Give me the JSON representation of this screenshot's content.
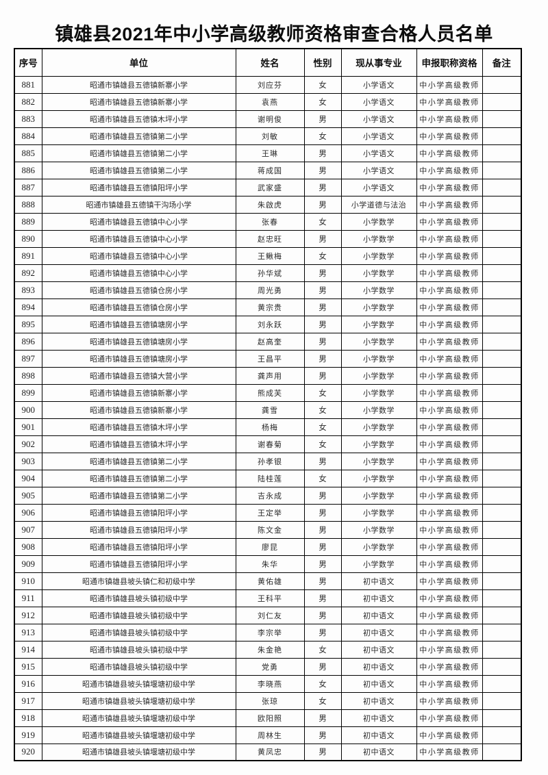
{
  "title": "镇雄县2021年中小学高级教师资格审查合格人员名单",
  "table": {
    "headers": [
      "序号",
      "单位",
      "姓名",
      "性别",
      "现从事专业",
      "申报职称资格",
      "备注"
    ],
    "rows": [
      [
        "881",
        "昭通市镇雄县五德镇新寨小学",
        "刘应芬",
        "女",
        "小学语文",
        "中小学高级教师",
        ""
      ],
      [
        "882",
        "昭通市镇雄县五德镇新寨小学",
        "袁燕",
        "女",
        "小学语文",
        "中小学高级教师",
        ""
      ],
      [
        "883",
        "昭通市镇雄县五德镇木坪小学",
        "谢明俊",
        "男",
        "小学语文",
        "中小学高级教师",
        ""
      ],
      [
        "884",
        "昭通市镇雄县五德镇第二小学",
        "刘敏",
        "女",
        "小学语文",
        "中小学高级教师",
        ""
      ],
      [
        "885",
        "昭通市镇雄县五德镇第二小学",
        "王琳",
        "男",
        "小学语文",
        "中小学高级教师",
        ""
      ],
      [
        "886",
        "昭通市镇雄县五德镇第二小学",
        "蒋成国",
        "男",
        "小学语文",
        "中小学高级教师",
        ""
      ],
      [
        "887",
        "昭通市镇雄县五德镇阳坪小学",
        "武家盛",
        "男",
        "小学语文",
        "中小学高级教师",
        ""
      ],
      [
        "888",
        "昭通市镇雄县五德镇干沟场小学",
        "朱啟虎",
        "男",
        "小学道德与法治",
        "中小学高级教师",
        ""
      ],
      [
        "889",
        "昭通市镇雄县五德镇中心小学",
        "张春",
        "女",
        "小学数学",
        "中小学高级教师",
        ""
      ],
      [
        "890",
        "昭通市镇雄县五德镇中心小学",
        "赵忠旺",
        "男",
        "小学数学",
        "中小学高级教师",
        ""
      ],
      [
        "891",
        "昭通市镇雄县五德镇中心小学",
        "王鳅梅",
        "女",
        "小学数学",
        "中小学高级教师",
        ""
      ],
      [
        "892",
        "昭通市镇雄县五德镇中心小学",
        "孙华斌",
        "男",
        "小学数学",
        "中小学高级教师",
        ""
      ],
      [
        "893",
        "昭通市镇雄县五德镇仓房小学",
        "周光勇",
        "男",
        "小学数学",
        "中小学高级教师",
        ""
      ],
      [
        "894",
        "昭通市镇雄县五德镇仓房小学",
        "黄宗贵",
        "男",
        "小学数学",
        "中小学高级教师",
        ""
      ],
      [
        "895",
        "昭通市镇雄县五德镇塘房小学",
        "刘永跃",
        "男",
        "小学数学",
        "中小学高级教师",
        ""
      ],
      [
        "896",
        "昭通市镇雄县五德镇塘房小学",
        "赵高奎",
        "男",
        "小学数学",
        "中小学高级教师",
        ""
      ],
      [
        "897",
        "昭通市镇雄县五德镇塘房小学",
        "王昌平",
        "男",
        "小学数学",
        "中小学高级教师",
        ""
      ],
      [
        "898",
        "昭通市镇雄县五德镇大营小学",
        "龚声用",
        "男",
        "小学数学",
        "中小学高级教师",
        ""
      ],
      [
        "899",
        "昭通市镇雄县五德镇新寨小学",
        "熊成芙",
        "女",
        "小学数学",
        "中小学高级教师",
        ""
      ],
      [
        "900",
        "昭通市镇雄县五德镇新寨小学",
        "龚雪",
        "女",
        "小学数学",
        "中小学高级教师",
        ""
      ],
      [
        "901",
        "昭通市镇雄县五德镇木坪小学",
        "杨梅",
        "女",
        "小学数学",
        "中小学高级教师",
        ""
      ],
      [
        "902",
        "昭通市镇雄县五德镇木坪小学",
        "谢春菊",
        "女",
        "小学数学",
        "中小学高级教师",
        ""
      ],
      [
        "903",
        "昭通市镇雄县五德镇第二小学",
        "孙孝银",
        "男",
        "小学数学",
        "中小学高级教师",
        ""
      ],
      [
        "904",
        "昭通市镇雄县五德镇第二小学",
        "陆桂莲",
        "女",
        "小学数学",
        "中小学高级教师",
        ""
      ],
      [
        "905",
        "昭通市镇雄县五德镇第二小学",
        "吉永成",
        "男",
        "小学数学",
        "中小学高级教师",
        ""
      ],
      [
        "906",
        "昭通市镇雄县五德镇阳坪小学",
        "王定举",
        "男",
        "小学数学",
        "中小学高级教师",
        ""
      ],
      [
        "907",
        "昭通市镇雄县五德镇阳坪小学",
        "陈文金",
        "男",
        "小学数学",
        "中小学高级教师",
        ""
      ],
      [
        "908",
        "昭通市镇雄县五德镇阳坪小学",
        "廖昆",
        "男",
        "小学数学",
        "中小学高级教师",
        ""
      ],
      [
        "909",
        "昭通市镇雄县五德镇阳坪小学",
        "朱华",
        "男",
        "小学数学",
        "中小学高级教师",
        ""
      ],
      [
        "910",
        "昭通市镇雄县坡头镇仁和初级中学",
        "黄佑雄",
        "男",
        "初中语文",
        "中小学高级教师",
        ""
      ],
      [
        "911",
        "昭通市镇雄县坡头镇初级中学",
        "王科平",
        "男",
        "初中语文",
        "中小学高级教师",
        ""
      ],
      [
        "912",
        "昭通市镇雄县坡头镇初级中学",
        "刘仁友",
        "男",
        "初中语文",
        "中小学高级教师",
        ""
      ],
      [
        "913",
        "昭通市镇雄县坡头镇初级中学",
        "李宗举",
        "男",
        "初中语文",
        "中小学高级教师",
        ""
      ],
      [
        "914",
        "昭通市镇雄县坡头镇初级中学",
        "朱金艳",
        "女",
        "初中语文",
        "中小学高级教师",
        ""
      ],
      [
        "915",
        "昭通市镇雄县坡头镇初级中学",
        "党勇",
        "男",
        "初中语文",
        "中小学高级教师",
        ""
      ],
      [
        "916",
        "昭通市镇雄县坡头镇堰塘初级中学",
        "李晓燕",
        "女",
        "初中语文",
        "中小学高级教师",
        ""
      ],
      [
        "917",
        "昭通市镇雄县坡头镇堰塘初级中学",
        "张琼",
        "女",
        "初中语文",
        "中小学高级教师",
        ""
      ],
      [
        "918",
        "昭通市镇雄县坡头镇堰塘初级中学",
        "欧阳照",
        "男",
        "初中语文",
        "中小学高级教师",
        ""
      ],
      [
        "919",
        "昭通市镇雄县坡头镇堰塘初级中学",
        "周林生",
        "男",
        "初中语文",
        "中小学高级教师",
        ""
      ],
      [
        "920",
        "昭通市镇雄县坡头镇堰塘初级中学",
        "黄凤忠",
        "男",
        "初中语文",
        "中小学高级教师",
        ""
      ]
    ]
  }
}
